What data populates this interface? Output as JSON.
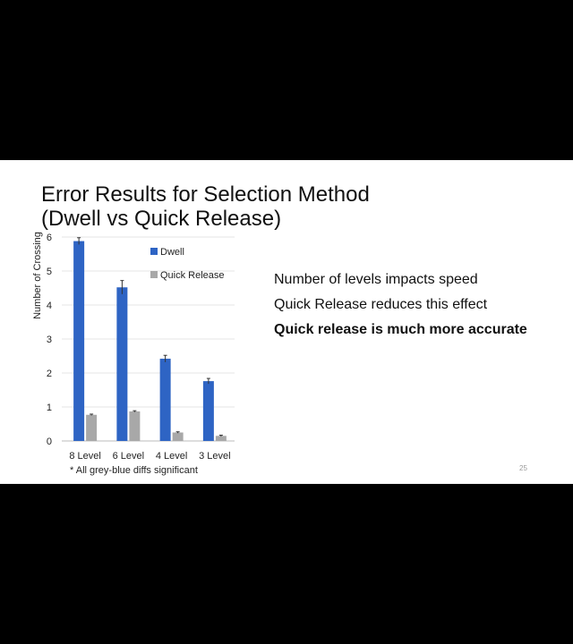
{
  "slide": {
    "title_line1": "Error Results for Selection Method",
    "title_line2": "(Dwell vs Quick Release)",
    "bullets": [
      "Number of levels impacts speed",
      "Quick Release reduces this effect",
      "Quick release is much more accurate"
    ],
    "slide_number": "25"
  },
  "chart_data": {
    "type": "bar",
    "categories": [
      "8 Level",
      "6 Level",
      "4 Level",
      "3 Level"
    ],
    "series": [
      {
        "name": "Dwell",
        "values": [
          5.88,
          4.52,
          2.42,
          1.76
        ],
        "errors": [
          0.1,
          0.2,
          0.1,
          0.08
        ],
        "color": "#2e64c4"
      },
      {
        "name": "Quick Release",
        "values": [
          0.77,
          0.87,
          0.25,
          0.15
        ],
        "errors": [
          0.02,
          0.02,
          0.02,
          0.02
        ],
        "color": "#a8a8a8"
      }
    ],
    "ylabel": "Number of Crossing",
    "yticks": [
      "0",
      "1",
      "2",
      "3",
      "4",
      "5",
      "6"
    ],
    "ylim": [
      0,
      6
    ],
    "grid": true,
    "legend_position": "top-right",
    "footnote": "* All grey-blue diffs significant"
  }
}
